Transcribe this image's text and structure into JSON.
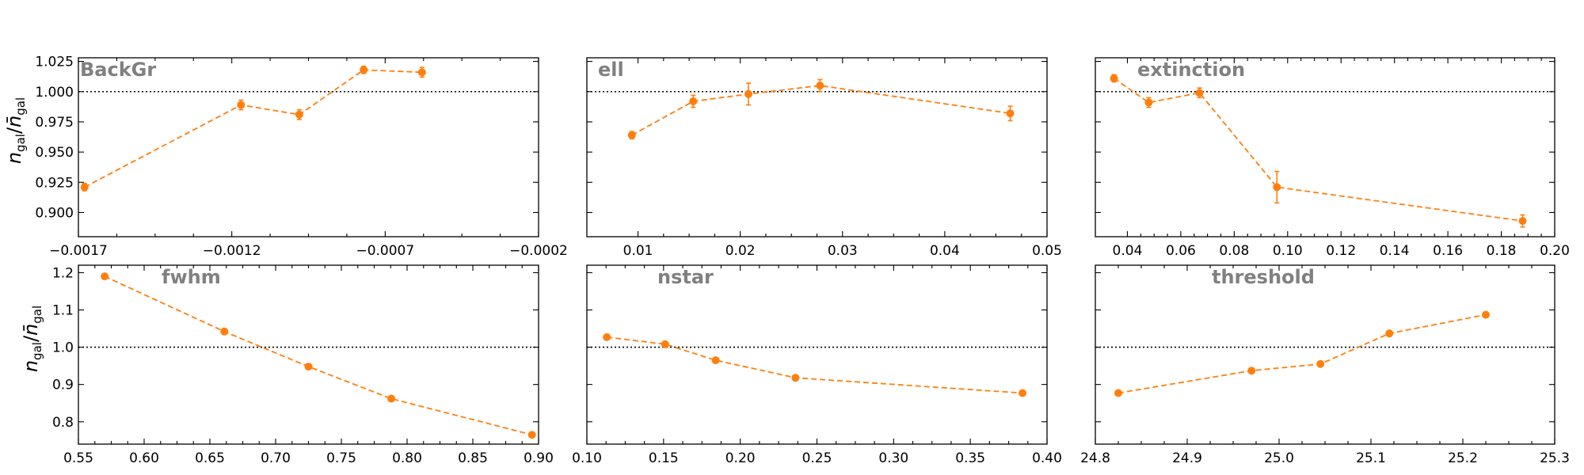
{
  "colors": {
    "series": "#ff7f0e",
    "reference": "#000000",
    "title": "#808080"
  },
  "ylabel": {
    "top": "n_gal / n̄_gal",
    "bottom": "n_gal / n̄_gal"
  },
  "chart_data": [
    {
      "type": "line",
      "title": "BackGr",
      "x": [
        -0.00168,
        -0.00117,
        -0.00098,
        -0.00077,
        -0.00058
      ],
      "y": [
        0.921,
        0.989,
        0.981,
        1.018,
        1.016
      ],
      "yerr": [
        0.003,
        0.004,
        0.004,
        0.003,
        0.004
      ],
      "xlim": [
        -0.0017,
        -0.0002
      ],
      "ylim": [
        0.88,
        1.028
      ],
      "xticks": [
        -0.0017,
        -0.0012,
        -0.0007,
        -0.0002
      ],
      "xtick_labels": [
        "−0.0017",
        "−0.0012",
        "−0.0007",
        "−0.0002"
      ],
      "yticks": [
        0.9,
        0.925,
        0.95,
        0.975,
        1.0,
        1.025
      ],
      "ytick_labels": [
        "0.900",
        "0.925",
        "0.950",
        "0.975",
        "1.000",
        "1.025"
      ],
      "reference_y": 1.0,
      "grid": false
    },
    {
      "type": "line",
      "title": "ell",
      "x": [
        0.0094,
        0.0154,
        0.0208,
        0.0278,
        0.0464
      ],
      "y": [
        0.964,
        0.992,
        0.998,
        1.005,
        0.982
      ],
      "yerr": [
        0.003,
        0.005,
        0.009,
        0.005,
        0.006
      ],
      "xlim": [
        0.005,
        0.05
      ],
      "ylim": [
        0.88,
        1.028
      ],
      "xticks": [
        0.01,
        0.02,
        0.03,
        0.04,
        0.05
      ],
      "xtick_labels": [
        "0.01",
        "0.02",
        "0.03",
        "0.04",
        "0.05"
      ],
      "yticks": [
        0.9,
        0.925,
        0.95,
        0.975,
        1.0,
        1.025
      ],
      "ytick_labels": [],
      "reference_y": 1.0,
      "grid": false
    },
    {
      "type": "line",
      "title": "extinction",
      "x": [
        0.035,
        0.048,
        0.067,
        0.096,
        0.188
      ],
      "y": [
        1.011,
        0.991,
        0.999,
        0.921,
        0.893
      ],
      "yerr": [
        0.003,
        0.004,
        0.004,
        0.013,
        0.005
      ],
      "xlim": [
        0.028,
        0.2
      ],
      "ylim": [
        0.88,
        1.028
      ],
      "xticks": [
        0.04,
        0.06,
        0.08,
        0.1,
        0.12,
        0.14,
        0.16,
        0.18,
        0.2
      ],
      "xtick_labels": [
        "0.04",
        "0.06",
        "0.08",
        "0.10",
        "0.12",
        "0.14",
        "0.16",
        "0.18",
        "0.20"
      ],
      "yticks": [
        0.9,
        0.925,
        0.95,
        0.975,
        1.0,
        1.025
      ],
      "ytick_labels": [],
      "reference_y": 1.0,
      "grid": false
    },
    {
      "type": "line",
      "title": "fwhm",
      "x": [
        0.57,
        0.661,
        0.725,
        0.788,
        0.895
      ],
      "y": [
        1.19,
        1.042,
        0.948,
        0.862,
        0.765
      ],
      "yerr": [
        0.003,
        0.003,
        0.003,
        0.003,
        0.003
      ],
      "xlim": [
        0.55,
        0.9
      ],
      "ylim": [
        0.74,
        1.22
      ],
      "xticks": [
        0.55,
        0.6,
        0.65,
        0.7,
        0.75,
        0.8,
        0.85,
        0.9
      ],
      "xtick_labels": [
        "0.55",
        "0.60",
        "0.65",
        "0.70",
        "0.75",
        "0.80",
        "0.85",
        "0.90"
      ],
      "yticks": [
        0.8,
        0.9,
        1.0,
        1.1,
        1.2
      ],
      "ytick_labels": [
        "0.8",
        "0.9",
        "1.0",
        "1.1",
        "1.2"
      ],
      "reference_y": 1.0,
      "grid": false
    },
    {
      "type": "line",
      "title": "nstar",
      "x": [
        0.113,
        0.151,
        0.184,
        0.236,
        0.384
      ],
      "y": [
        1.027,
        1.008,
        0.965,
        0.918,
        0.877
      ],
      "yerr": [
        0.003,
        0.003,
        0.003,
        0.003,
        0.003
      ],
      "xlim": [
        0.1,
        0.4
      ],
      "ylim": [
        0.74,
        1.22
      ],
      "xticks": [
        0.1,
        0.15,
        0.2,
        0.25,
        0.3,
        0.35,
        0.4
      ],
      "xtick_labels": [
        "0.10",
        "0.15",
        "0.20",
        "0.25",
        "0.30",
        "0.35",
        "0.40"
      ],
      "yticks": [
        0.8,
        0.9,
        1.0,
        1.1,
        1.2
      ],
      "ytick_labels": [],
      "reference_y": 1.0,
      "grid": false
    },
    {
      "type": "line",
      "title": "threshold",
      "x": [
        24.825,
        24.97,
        25.045,
        25.12,
        25.225
      ],
      "y": [
        0.877,
        0.937,
        0.955,
        1.037,
        1.087
      ],
      "yerr": [
        0.003,
        0.003,
        0.003,
        0.003,
        0.003
      ],
      "xlim": [
        24.8,
        25.3
      ],
      "ylim": [
        0.74,
        1.22
      ],
      "xticks": [
        24.8,
        24.9,
        25.0,
        25.1,
        25.2,
        25.3
      ],
      "xtick_labels": [
        "24.8",
        "24.9",
        "25.0",
        "25.1",
        "25.2",
        "25.3"
      ],
      "yticks": [
        0.8,
        0.9,
        1.0,
        1.1,
        1.2
      ],
      "ytick_labels": [],
      "reference_y": 1.0,
      "grid": false
    }
  ]
}
